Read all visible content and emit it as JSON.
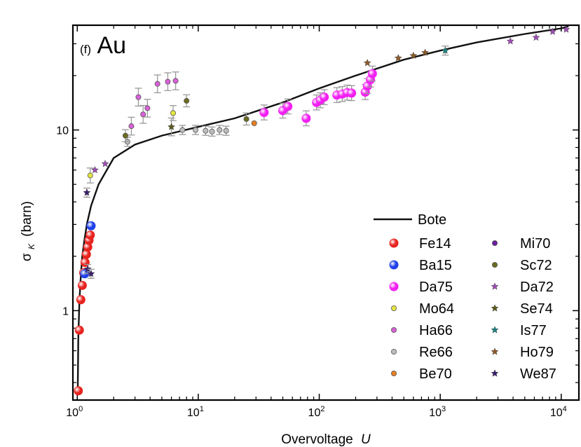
{
  "chart_data": {
    "type": "scatter",
    "panel_tag": "(f)",
    "element": "Au",
    "xlabel": "Overvoltage",
    "xlabel_var": "U",
    "ylabel_sym": "σ",
    "ylabel_sub": "K",
    "ylabel_unit": "(barn)",
    "xscale": "log",
    "yscale": "log",
    "xlim": [
      0.92,
      14000
    ],
    "ylim": [
      0.32,
      38
    ],
    "x_ticks": [
      {
        "value": 1,
        "base": "10",
        "exp": "0"
      },
      {
        "value": 10,
        "base": "10",
        "exp": "1"
      },
      {
        "value": 100,
        "base": "10",
        "exp": "2"
      },
      {
        "value": 1000,
        "base": "10",
        "exp": "3"
      },
      {
        "value": 10000,
        "base": "10",
        "exp": "4"
      }
    ],
    "y_ticks": [
      {
        "value": 1,
        "label": "1"
      },
      {
        "value": 10,
        "label": "10"
      }
    ],
    "line": {
      "name": "Bote",
      "x": [
        1.01,
        1.02,
        1.04,
        1.06,
        1.08,
        1.1,
        1.14,
        1.2,
        1.3,
        1.5,
        2,
        3,
        5,
        10,
        20,
        50,
        100,
        200,
        500,
        1000,
        2000,
        5000,
        10000,
        11500
      ],
      "y": [
        0.38,
        0.7,
        1.1,
        1.4,
        1.7,
        2.0,
        2.4,
        3.0,
        3.8,
        5.0,
        7.0,
        8.3,
        9.3,
        10.4,
        11.6,
        14.2,
        17.0,
        20.0,
        24.5,
        27.5,
        30.5,
        34.0,
        36.5,
        37.5
      ]
    },
    "series": [
      {
        "name": "Fe14",
        "marker": "ball",
        "color": "#e8231f",
        "x": [
          1.02,
          1.04,
          1.07,
          1.1,
          1.13,
          1.16,
          1.19,
          1.22,
          1.25,
          1.28
        ],
        "y": [
          0.36,
          0.78,
          1.15,
          1.38,
          1.62,
          1.85,
          2.05,
          2.25,
          2.45,
          2.62
        ]
      },
      {
        "name": "Ba15",
        "marker": "ball",
        "color": "#1f3fe8",
        "x": [
          1.15,
          1.3
        ],
        "y": [
          1.6,
          2.95
        ]
      },
      {
        "name": "Da75",
        "marker": "ball",
        "color": "#f21ff2",
        "x": [
          35,
          50,
          55,
          78,
          95,
          102,
          110,
          140,
          155,
          170,
          185,
          240,
          250,
          265,
          275
        ],
        "y": [
          12.5,
          12.8,
          13.5,
          11.6,
          14.2,
          14.6,
          15.2,
          15.6,
          15.8,
          16.1,
          16.0,
          16.2,
          17.5,
          19.0,
          20.5
        ],
        "yerr": 0.1
      },
      {
        "name": "Mo64",
        "marker": "dot",
        "color": "#e6e640",
        "x": [
          1.28,
          6.2
        ],
        "y": [
          5.6,
          12.4
        ],
        "yerr": 0.1
      },
      {
        "name": "Ha66",
        "marker": "dot",
        "color": "#d860d8",
        "x": [
          2.8,
          3.2,
          3.5,
          3.8,
          4.6,
          5.6,
          6.5
        ],
        "y": [
          10.5,
          15.2,
          12.2,
          13.2,
          18.0,
          18.5,
          18.7
        ],
        "yerr": 0.12
      },
      {
        "name": "Re66",
        "marker": "dot",
        "color": "#bdbdbd",
        "x": [
          2.6,
          7.4,
          9.5,
          11.5,
          13,
          15,
          17
        ],
        "y": [
          8.6,
          10.0,
          10.0,
          9.9,
          9.8,
          10.0,
          9.9
        ],
        "yerr": 0.06
      },
      {
        "name": "Be70",
        "marker": "dot",
        "color": "#e67e22",
        "x": [
          29
        ],
        "y": [
          10.9
        ]
      },
      {
        "name": "Mi70",
        "marker": "dot",
        "color": "#6a1fa0",
        "x": [],
        "y": []
      },
      {
        "name": "Sc72",
        "marker": "dot",
        "color": "#6b6b1f",
        "x": [
          2.5,
          8,
          25
        ],
        "y": [
          9.3,
          14.5,
          11.5
        ],
        "yerr": 0.08
      },
      {
        "name": "Da72",
        "marker": "star",
        "color": "#9a4fb0",
        "x": [
          1.4,
          1.7,
          3800,
          6200,
          8500,
          11000
        ],
        "y": [
          6.0,
          6.5,
          31.0,
          32.5,
          35.0,
          36.0
        ]
      },
      {
        "name": "Se74",
        "marker": "star",
        "color": "#5a5a1f",
        "x": [
          6
        ],
        "y": [
          10.4
        ],
        "yerr": 0.12
      },
      {
        "name": "Is77",
        "marker": "star",
        "color": "#1f8080",
        "x": [
          1100
        ],
        "y": [
          27.5
        ],
        "yerr": 0.06
      },
      {
        "name": "Ho79",
        "marker": "star",
        "color": "#8b5a2b",
        "x": [
          250,
          450,
          600,
          750
        ],
        "y": [
          23.5,
          25.0,
          25.8,
          26.8
        ]
      },
      {
        "name": "We87",
        "marker": "star",
        "color": "#3a1f6b",
        "x": [
          1.2,
          1.22,
          1.3
        ],
        "y": [
          4.5,
          1.7,
          1.6
        ],
        "yerr": 0.06
      }
    ]
  }
}
